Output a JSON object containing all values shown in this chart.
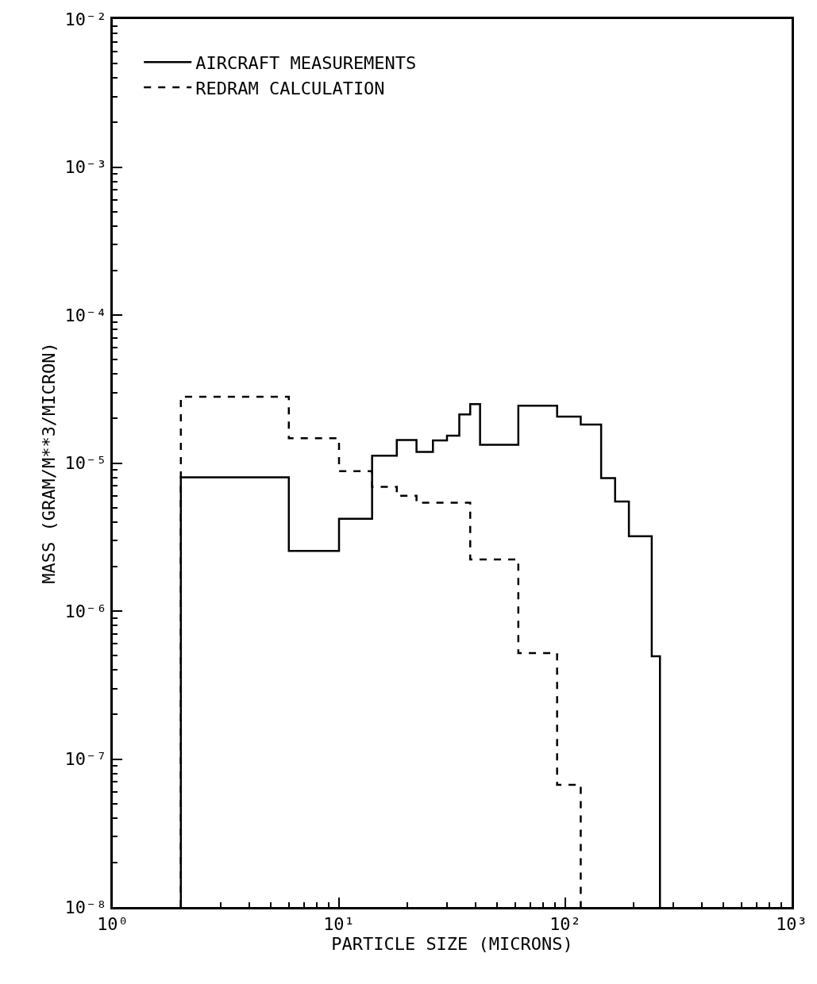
{
  "chart_data": {
    "type": "step",
    "xlabel": "PARTICLE SIZE (MICRONS)",
    "ylabel": "MASS (GRAM/M**3/MICRON)",
    "log": "xy",
    "grid": false,
    "legend": "top left",
    "xlim": [
      1,
      1000
    ],
    "xticks": [
      {
        "value": 1,
        "label": "10⁰"
      },
      {
        "value": 10,
        "label": "10¹"
      },
      {
        "value": 100,
        "label": "10²"
      },
      {
        "value": 1000,
        "label": "10³"
      }
    ],
    "ylim": [
      1e-08,
      0.01
    ],
    "yticks": [
      {
        "value": 1e-08,
        "label": "10⁻⁸"
      },
      {
        "value": 1e-07,
        "label": "10⁻⁷"
      },
      {
        "value": 1e-06,
        "label": "10⁻⁶"
      },
      {
        "value": 1e-05,
        "label": "10⁻⁵"
      },
      {
        "value": 0.0001,
        "label": "10⁻⁴"
      },
      {
        "value": 0.001,
        "label": "10⁻³"
      },
      {
        "value": 0.01,
        "label": "10⁻²"
      }
    ],
    "series": [
      {
        "name": "AIRCRAFT MEASUREMENTS",
        "color": "#000000",
        "line_style": "solid",
        "x": [
          2,
          2,
          6,
          10,
          14,
          18,
          22,
          26,
          30,
          34,
          38,
          42,
          62,
          92,
          117,
          144,
          166,
          191,
          241,
          262
        ],
        "values": [
          1e-08,
          8e-06,
          2.55e-06,
          4.2e-06,
          1.12e-05,
          1.43e-05,
          1.19e-05,
          1.42e-05,
          1.53e-05,
          2.13e-05,
          2.5e-05,
          1.33e-05,
          2.44e-05,
          2.06e-05,
          1.82e-05,
          7.9e-06,
          5.5e-06,
          3.2e-06,
          4.95e-07,
          1e-08
        ]
      },
      {
        "name": "REDRAM CALCULATION",
        "color": "#000000",
        "line_style": "dashed",
        "x": [
          2,
          2,
          6,
          10,
          14,
          18,
          22,
          38,
          62,
          92,
          117
        ],
        "values": [
          1e-08,
          2.8e-05,
          1.47e-05,
          8.8e-06,
          6.9e-06,
          6e-06,
          5.4e-06,
          2.23e-06,
          5.2e-07,
          6.7e-08,
          1e-08
        ]
      }
    ]
  }
}
